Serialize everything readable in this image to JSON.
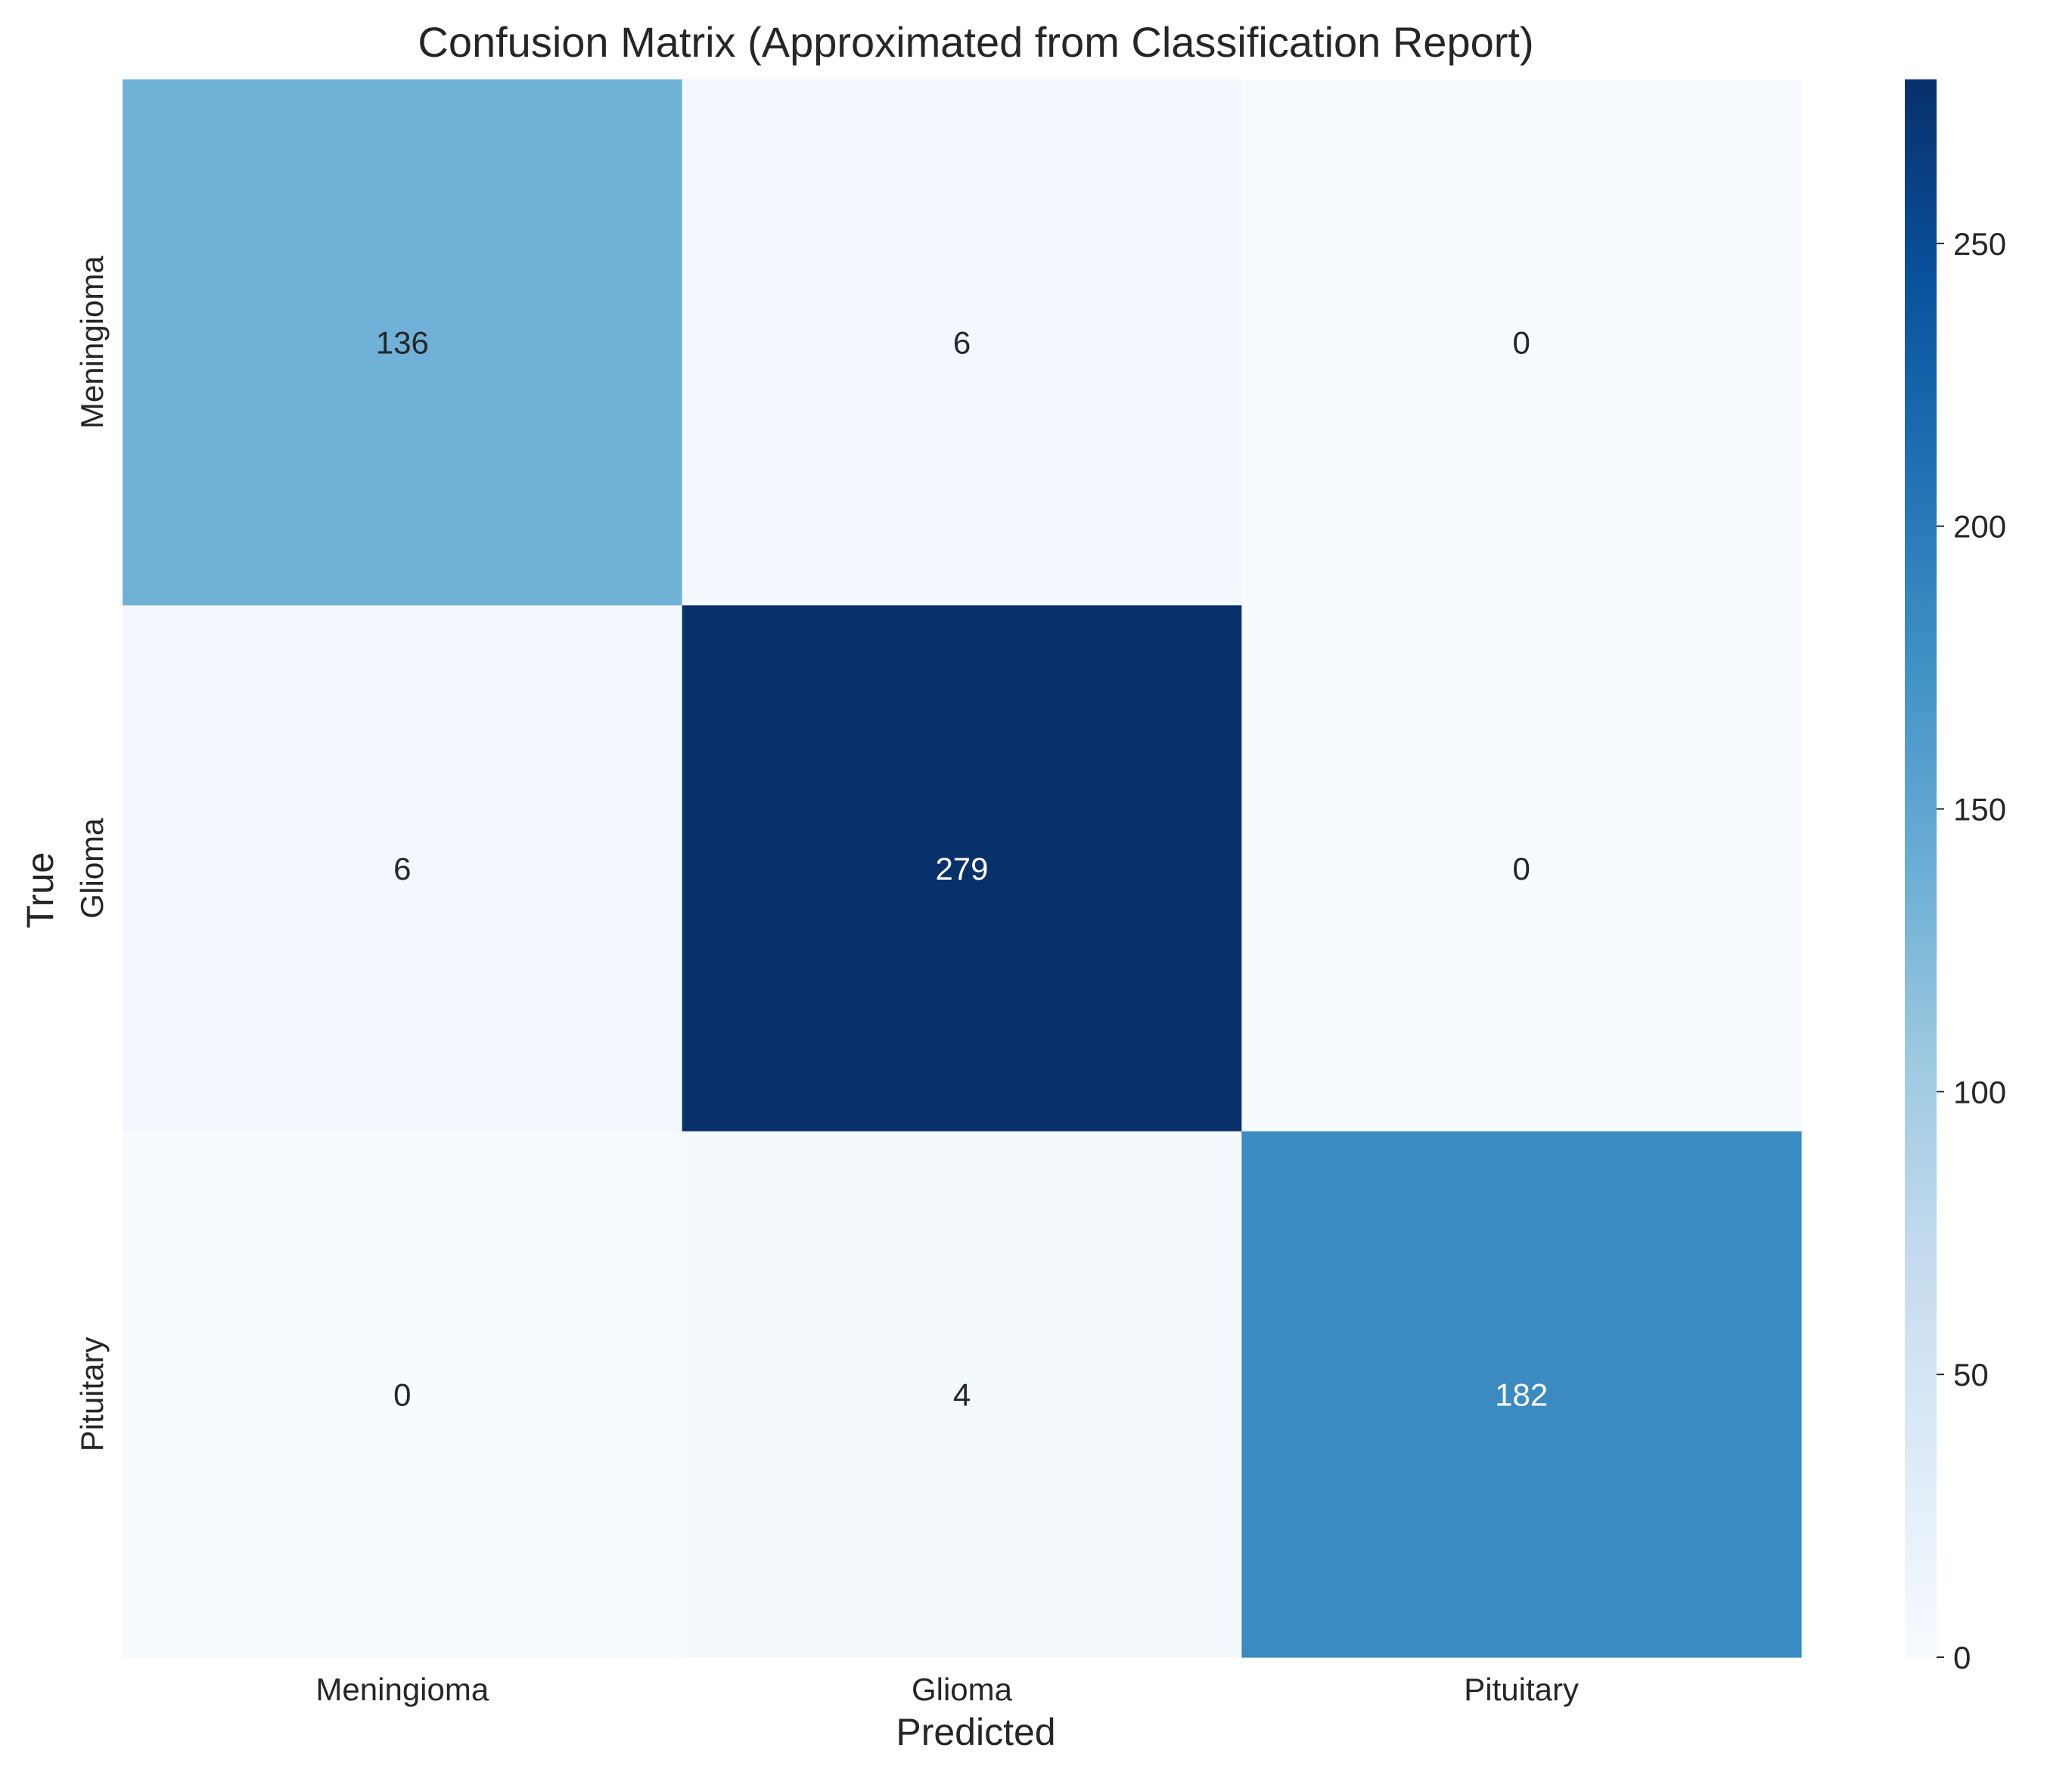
{
  "chart_data": {
    "type": "heatmap",
    "title": "Confusion Matrix (Approximated from Classification Report)",
    "xlabel": "Predicted",
    "ylabel": "True",
    "x_categories": [
      "Meningioma",
      "Glioma",
      "Pituitary"
    ],
    "y_categories": [
      "Meningioma",
      "Glioma",
      "Pituitary"
    ],
    "values": [
      [
        136,
        6,
        0
      ],
      [
        6,
        279,
        0
      ],
      [
        0,
        4,
        182
      ]
    ],
    "colorbar": {
      "min": 0,
      "max": 279,
      "ticks": [
        0,
        50,
        100,
        150,
        200,
        250
      ],
      "colormap": "Blues"
    },
    "colors": {
      "low": "#f7fbff",
      "high": "#08306b",
      "text_dark": "#262626",
      "text_light": "#ffffff"
    }
  }
}
